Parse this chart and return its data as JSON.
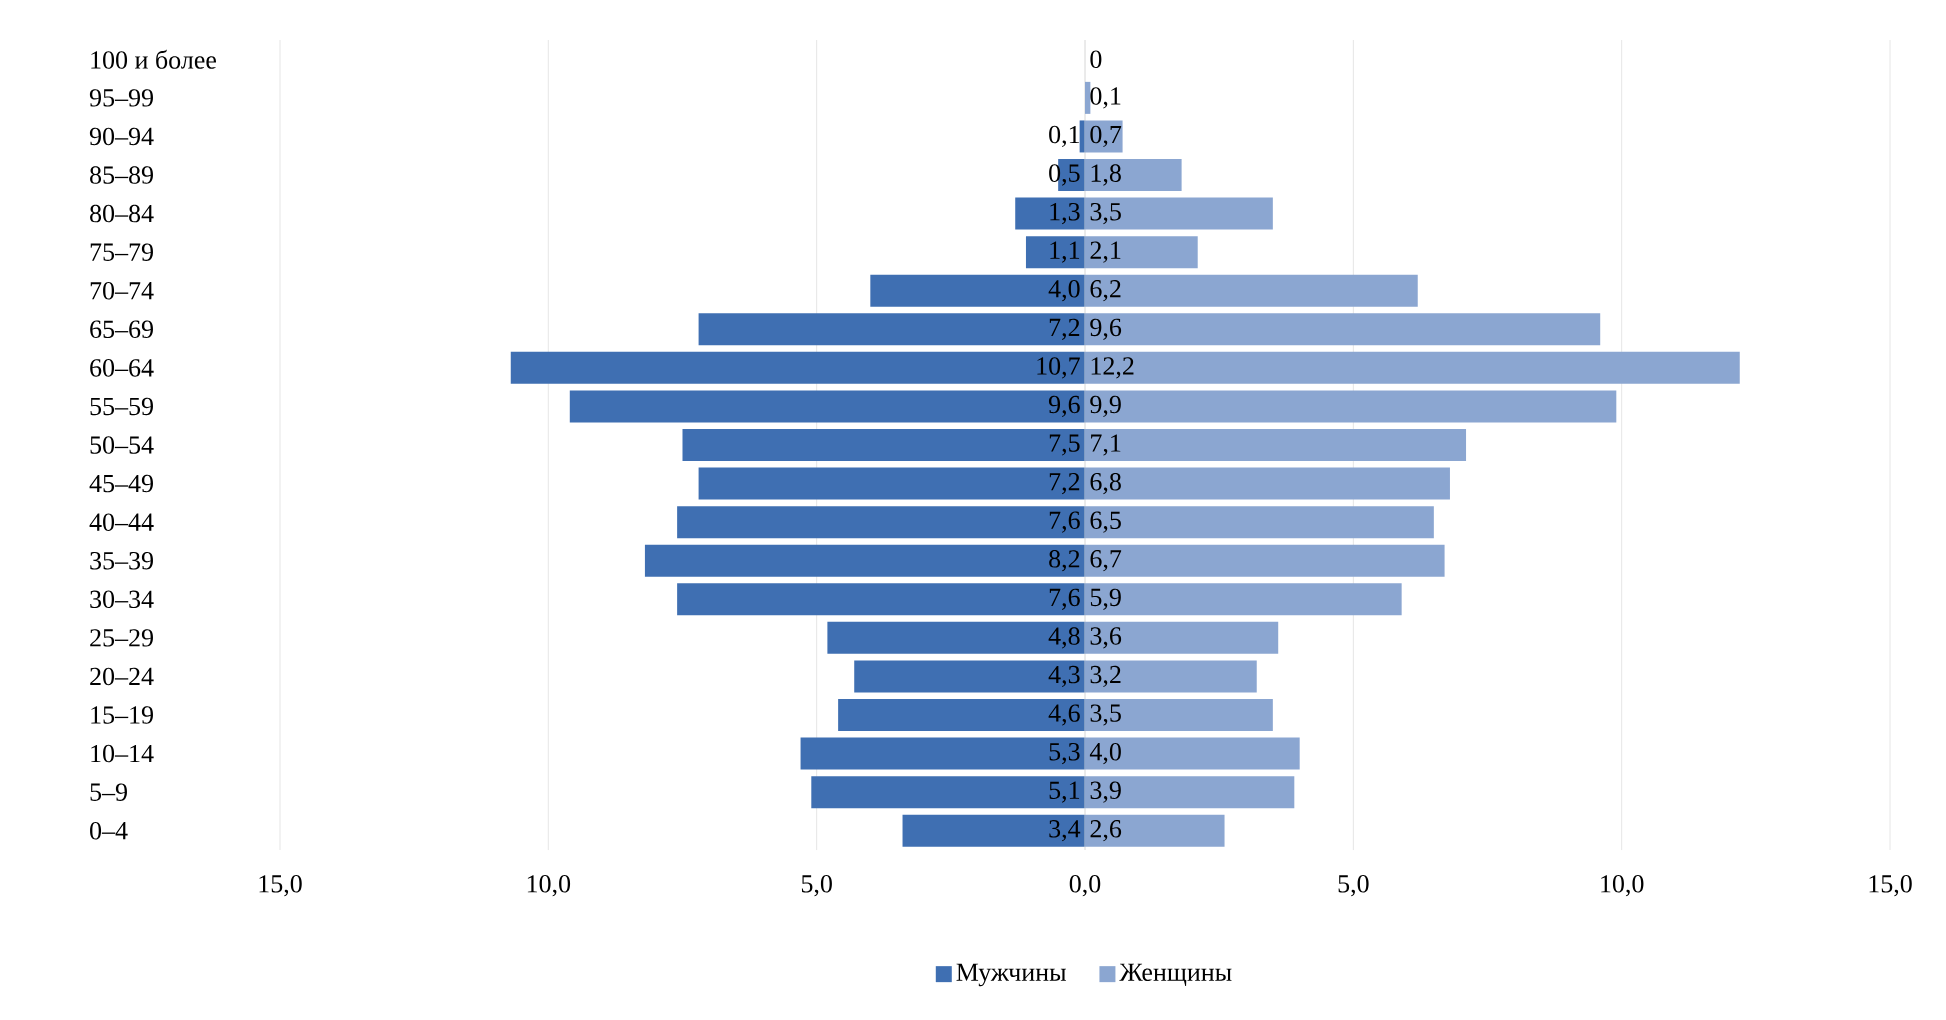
{
  "chart_data": [
    {
      "type": "bar",
      "orientation": "horizontal",
      "categories": [
        "100 и более",
        "95–99",
        "90–94",
        "85–89",
        "80–84",
        "75–79",
        "70–74",
        "65–69",
        "60–64",
        "55–59",
        "50–54",
        "45–49",
        "40–44",
        "35–39",
        "30–34",
        "25–29",
        "20–24",
        "15–19",
        "10–14",
        "5–9",
        "0–4"
      ],
      "series": [
        {
          "name": "Мужчины",
          "color": "#3f6fb2",
          "values": [
            null,
            null,
            0.1,
            0.5,
            1.3,
            1.1,
            4.0,
            7.2,
            10.7,
            9.6,
            7.5,
            7.2,
            7.6,
            8.2,
            7.6,
            4.8,
            4.3,
            4.6,
            5.3,
            5.1,
            3.4
          ],
          "value_labels": [
            null,
            null,
            "0,1",
            "0,5",
            "1,3",
            "1,1",
            "4,0",
            "7,2",
            "10,7",
            "9,6",
            "7,5",
            "7,2",
            "7,6",
            "8,2",
            "7,6",
            "4,8",
            "4,3",
            "4,6",
            "5,3",
            "5,1",
            "3,4"
          ]
        }
      ],
      "xlim": [
        15,
        0
      ],
      "xticks": [
        {
          "value": 15,
          "label": "15,0"
        },
        {
          "value": 10,
          "label": "10,0"
        },
        {
          "value": 5,
          "label": "5,0"
        },
        {
          "value": 0,
          "label": "0,0"
        }
      ],
      "grid": "x",
      "legend": "bottom"
    },
    {
      "type": "bar",
      "orientation": "horizontal",
      "categories": [
        null,
        null,
        null,
        null,
        null,
        null,
        null,
        null,
        null,
        null,
        null,
        null,
        null,
        null,
        null,
        null,
        null,
        null,
        null,
        null,
        null
      ],
      "series": [
        {
          "name": "Женщины",
          "color": "#8ba6d1",
          "values": [
            0,
            0.1,
            0.7,
            1.8,
            3.5,
            2.1,
            6.2,
            9.6,
            12.2,
            9.9,
            7.1,
            6.8,
            6.5,
            6.7,
            5.9,
            3.6,
            3.2,
            3.5,
            4.0,
            3.9,
            2.6
          ],
          "value_labels": [
            "0",
            "0,1",
            "0,7",
            "1,8",
            "3,5",
            "2,1",
            "6,2",
            "9,6",
            "12,2",
            "9,9",
            "7,1",
            "6,8",
            "6,5",
            "6,7",
            "5,9",
            "3,6",
            "3,2",
            "3,5",
            "4,0",
            "3,9",
            "2,6"
          ]
        }
      ],
      "xlim": [
        0,
        15
      ],
      "xticks": [
        {
          "value": 0,
          "label": null
        },
        {
          "value": 5,
          "label": "5,0"
        },
        {
          "value": 10,
          "label": "10,0"
        },
        {
          "value": 15,
          "label": "15,0"
        }
      ],
      "grid": "x",
      "legend": "bottom",
      "tick_labels": "x"
    }
  ]
}
